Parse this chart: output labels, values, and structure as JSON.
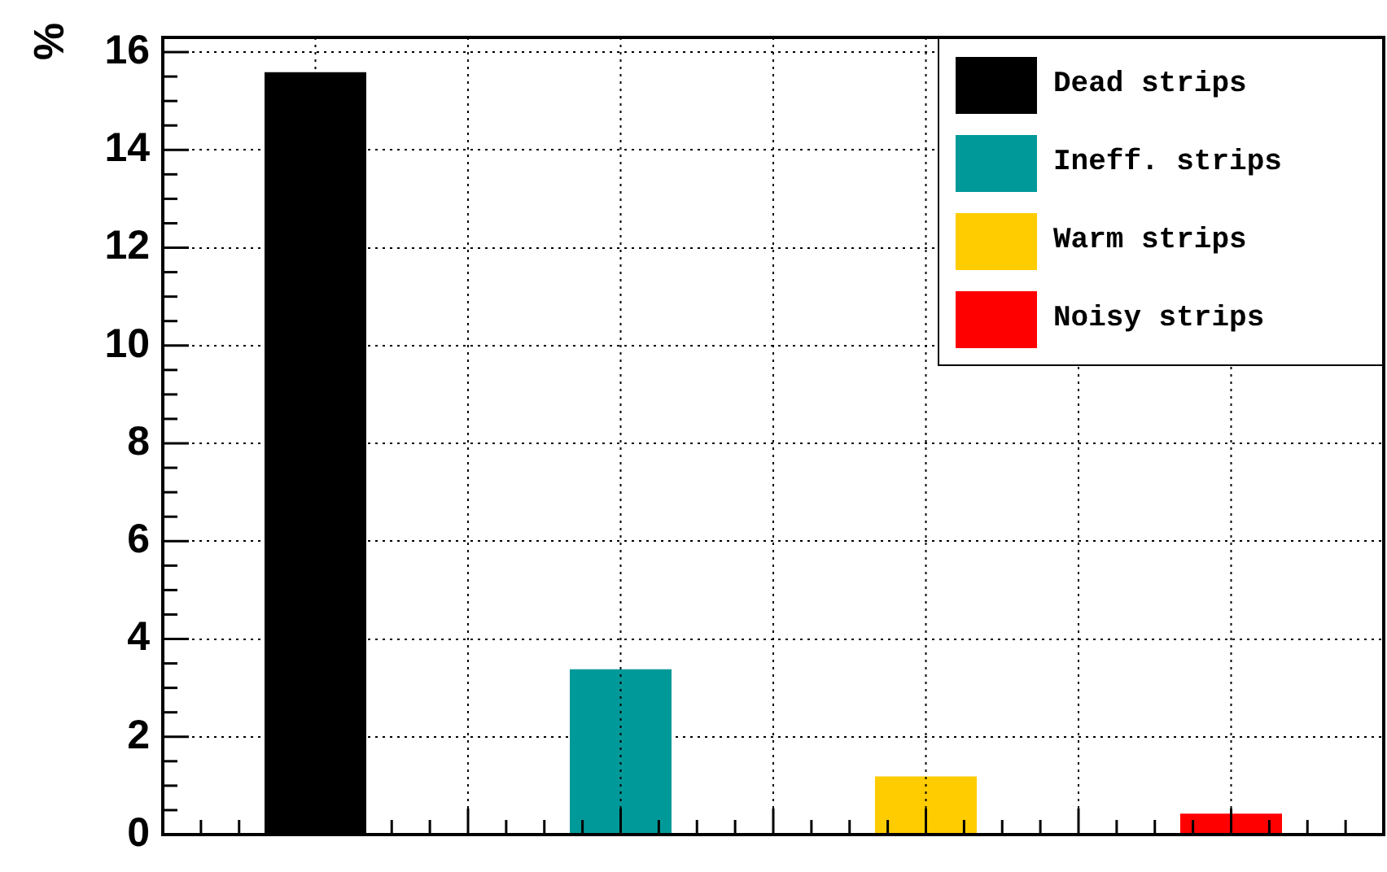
{
  "chart_data": {
    "type": "bar",
    "ylabel": "%",
    "categories": [
      null,
      null,
      null,
      null
    ],
    "series": [
      {
        "name": "Dead strips",
        "color": "#000000",
        "values": [
          15.59,
          null,
          null,
          null
        ]
      },
      {
        "name": "Ineff. strips",
        "color": "#009999",
        "values": [
          null,
          3.38,
          null,
          null
        ]
      },
      {
        "name": "Warm strips",
        "color": "#ffcc00",
        "values": [
          null,
          null,
          1.19,
          null
        ]
      },
      {
        "name": "Noisy strips",
        "color": "#ff0000",
        "values": [
          null,
          null,
          null,
          0.43
        ]
      }
    ],
    "ylim": [
      0,
      16.3
    ],
    "yticks": [
      0,
      2,
      4,
      6,
      8,
      10,
      12,
      14,
      16
    ],
    "grid": true,
    "legend": "top right",
    "tick_labels": "y"
  }
}
